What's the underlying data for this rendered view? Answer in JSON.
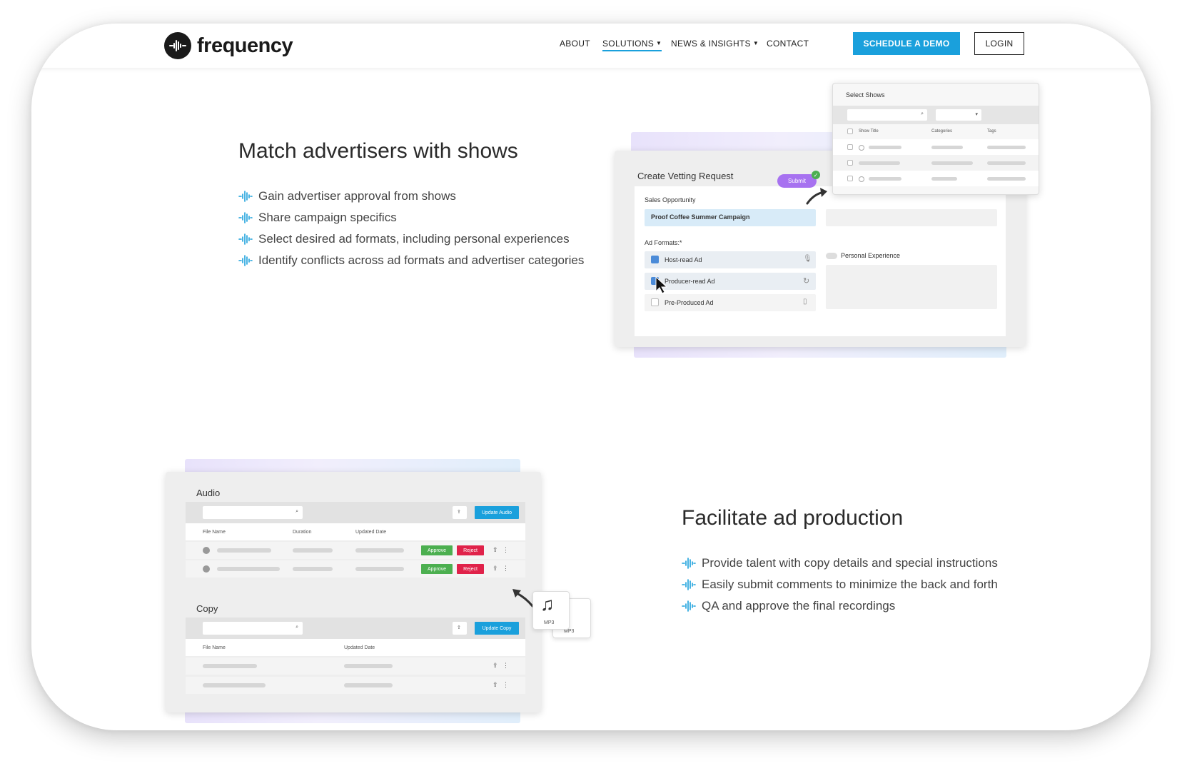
{
  "brand": {
    "name": "frequency"
  },
  "nav": {
    "about": "ABOUT",
    "solutions": "SOLUTIONS",
    "news": "NEWS & INSIGHTS",
    "contact": "CONTACT",
    "demo": "SCHEDULE A DEMO",
    "login": "LOGIN"
  },
  "colors": {
    "accent": "#1aa0dc",
    "purple": "#a772f0",
    "approve": "#4caf50",
    "reject": "#e0224a"
  },
  "section1": {
    "title": "Match advertisers with shows",
    "bullets": [
      "Gain advertiser approval from shows",
      "Share campaign specifics",
      "Select desired ad formats, including personal experiences",
      "Identify conflicts across ad formats and advertiser categories"
    ]
  },
  "vetting": {
    "title": "Create Vetting Request",
    "submit": "Submit",
    "sales_label": "Sales Opportunity",
    "sales_value": "Proof Coffee Summer Campaign",
    "formats_label": "Ad Formats:*",
    "formats": [
      "Host-read Ad",
      "Producer-read Ad",
      "Pre-Produced Ad"
    ],
    "personal": "Personal Experience"
  },
  "shows": {
    "title": "Select Shows",
    "columns": [
      "Show Title",
      "Categories",
      "Tags"
    ]
  },
  "section2": {
    "title": "Facilitate ad production",
    "bullets": [
      "Provide talent with copy details and special instructions",
      "Easily submit comments to minimize the back and forth",
      "QA and approve the final recordings"
    ]
  },
  "audio": {
    "title": "Audio",
    "update": "Update Audio",
    "columns": [
      "File Name",
      "Duration",
      "Updated Date"
    ],
    "approve": "Approve",
    "reject": "Reject"
  },
  "copy": {
    "title": "Copy",
    "update": "Update Copy",
    "columns": [
      "File Name",
      "Updated Date"
    ]
  },
  "mp3": "MP3"
}
